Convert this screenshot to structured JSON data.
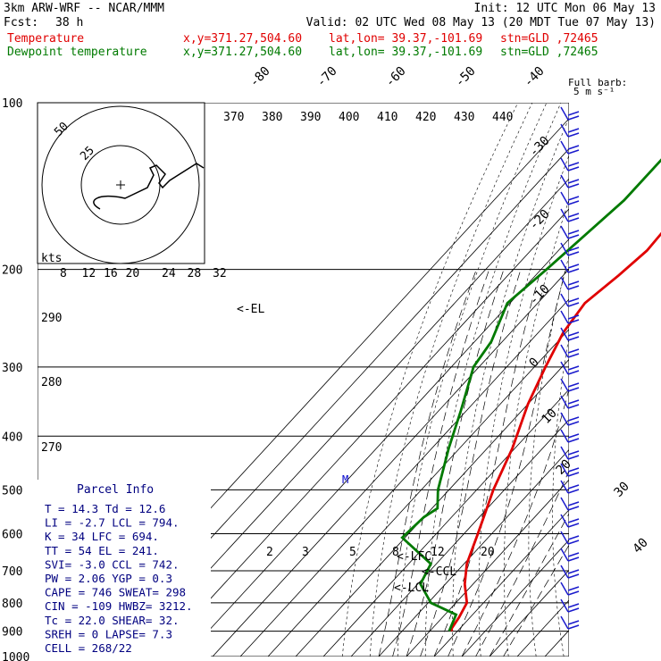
{
  "header": {
    "model": "3km ARW-WRF -- NCAR/MMM",
    "init": "Init: 12 UTC Mon 06 May 13",
    "fcst_label": "Fcst:",
    "fcst_value": "38 h",
    "valid": "Valid: 02 UTC Wed 08 May 13 (20 MDT Tue 07 May 13)"
  },
  "legend": [
    {
      "name": "Temperature",
      "xy": "x,y=371.27,504.60",
      "latlon": "lat,lon= 39.37,-101.69",
      "stn": "stn=GLD ,72465",
      "color": "#e00000"
    },
    {
      "name": "Dewpoint temperature",
      "xy": "x,y=371.27,504.60",
      "latlon": "lat,lon= 39.37,-101.69",
      "stn": "stn=GLD ,72465",
      "color": "#007a00"
    }
  ],
  "barb_key": {
    "title": "Full barb:",
    "value": "5 m s⁻¹"
  },
  "hodograph": {
    "unit": "kts",
    "rings": [
      "25",
      "50"
    ]
  },
  "parcel": {
    "title": "Parcel Info",
    "rows": [
      "T  =   14.3 Td =  12.6",
      "LI =   -2.7 LCL =  794.",
      "K  =     34 LFC =  694.",
      "TT =     54 EL  =  241.",
      "SVI=   -3.0 CCL =  742.",
      "PW =   2.06 YGP =   0.3",
      "CAPE =  746 SWEAT=  298",
      "CIN  = -109 HWBZ= 3212.",
      "Tc =   22.0 SHEAR=  32.",
      "SREH =    0 LAPSE=  7.3",
      "CELL = 268/22"
    ]
  },
  "level_labels": {
    "el": "<-EL",
    "lfc": "<-LFC",
    "ccl": "<-CCL",
    "lcl": "<-LCL",
    "m": "M"
  },
  "chart_data": {
    "type": "line",
    "title": "",
    "y_axis": {
      "label": "",
      "ticks": [
        100,
        200,
        300,
        400,
        500,
        600,
        700,
        800,
        900,
        1000
      ],
      "scale": "log-pressure (hPa)"
    },
    "isotherm_labels": [
      "-80",
      "-70",
      "-60",
      "-50",
      "-40",
      "-30",
      "-20",
      "-10",
      "0",
      "10",
      "20",
      "30",
      "40"
    ],
    "theta_labels": [
      "370",
      "380",
      "390",
      "400",
      "410",
      "420",
      "430",
      "440"
    ],
    "theta_left_labels": [
      "290",
      "280",
      "270"
    ],
    "mixing_ratio_labels": [
      "2",
      "3",
      "5",
      "8",
      "12",
      "20"
    ],
    "hodo_speed_labels": [
      "8",
      "12",
      "16",
      "20",
      "24",
      "28",
      "32"
    ],
    "series": [
      {
        "name": "Temperature",
        "color": "#e00000",
        "points": [
          [
            100,
            -59
          ],
          [
            115,
            -58
          ],
          [
            130,
            -55
          ],
          [
            160,
            -49
          ],
          [
            185,
            -48
          ],
          [
            205,
            -50
          ],
          [
            230,
            -53
          ],
          [
            260,
            -51
          ],
          [
            300,
            -46
          ],
          [
            350,
            -40
          ],
          [
            420,
            -31
          ],
          [
            500,
            -24
          ],
          [
            600,
            -15
          ],
          [
            680,
            -9
          ],
          [
            740,
            -3
          ],
          [
            800,
            4
          ],
          [
            850,
            6
          ],
          [
            890,
            7
          ],
          [
            900,
            8
          ]
        ]
      },
      {
        "name": "Dewpoint temperature",
        "color": "#007a00",
        "points": [
          [
            100,
            -73
          ],
          [
            150,
            -73
          ],
          [
            200,
            -78
          ],
          [
            230,
            -81
          ],
          [
            270,
            -74
          ],
          [
            300,
            -72
          ],
          [
            360,
            -62
          ],
          [
            420,
            -54
          ],
          [
            500,
            -44
          ],
          [
            540,
            -38
          ],
          [
            560,
            -40
          ],
          [
            610,
            -41
          ],
          [
            680,
            -22
          ],
          [
            740,
            -19
          ],
          [
            800,
            -9
          ],
          [
            840,
            4
          ],
          [
            880,
            6
          ],
          [
            900,
            7
          ]
        ]
      }
    ]
  }
}
